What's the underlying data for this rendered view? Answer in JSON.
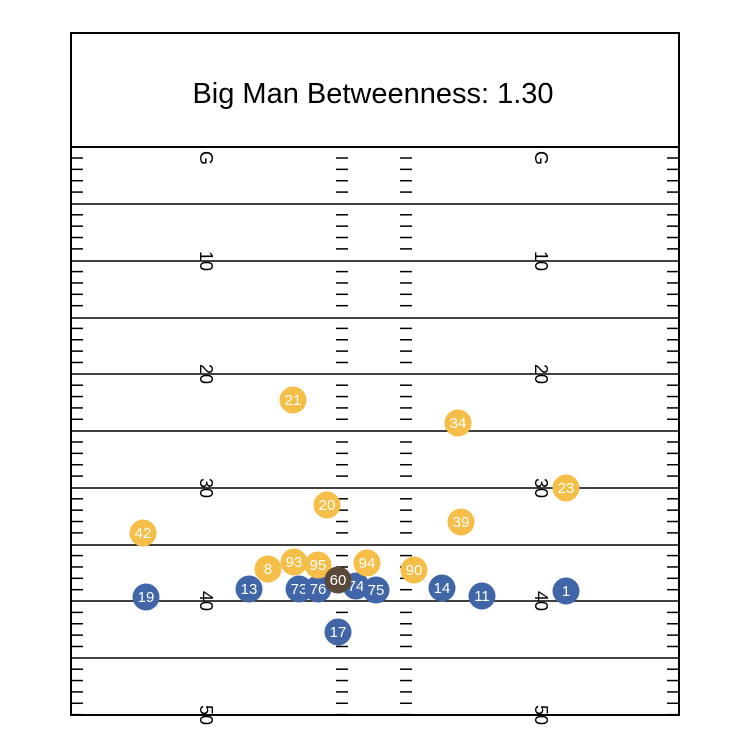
{
  "title": "Big Man Betweenness: 1.30",
  "chart_data": {
    "type": "scatter",
    "title": "Big Man Betweenness: 1.30",
    "field": {
      "yard_lines": [
        0,
        10,
        20,
        30,
        40,
        50
      ],
      "yard_number_labels": [
        "G",
        "10",
        "20",
        "30",
        "40",
        "50"
      ],
      "y_range": [
        -1,
        52
      ]
    },
    "colors": {
      "offense": "#4066a8",
      "defense": "#f5be48",
      "ball": "#5a4a3a",
      "line": "#000000"
    },
    "series": [
      {
        "team": "offense",
        "points": [
          {
            "label": "19",
            "x": 7.5,
            "y": 40.0
          },
          {
            "label": "13",
            "x": 19.5,
            "y": 39.6
          },
          {
            "label": "73",
            "x": 25.2,
            "y": 39.6
          },
          {
            "label": "76",
            "x": 27.0,
            "y": 39.6
          },
          {
            "label": "74",
            "x": 30.5,
            "y": 39.3
          },
          {
            "label": "75",
            "x": 32.5,
            "y": 39.6
          },
          {
            "label": "17",
            "x": 29.0,
            "y": 43.0
          },
          {
            "label": "14",
            "x": 41.0,
            "y": 39.5
          },
          {
            "label": "11",
            "x": 45.5,
            "y": 40.0
          },
          {
            "label": "1",
            "x": 53.0,
            "y": 39.6
          }
        ]
      },
      {
        "team": "defense",
        "points": [
          {
            "label": "21",
            "x": 24.6,
            "y": 22.4
          },
          {
            "label": "34",
            "x": 41.5,
            "y": 24.5
          },
          {
            "label": "23",
            "x": 53.0,
            "y": 30.3
          },
          {
            "label": "20",
            "x": 27.8,
            "y": 31.8
          },
          {
            "label": "39",
            "x": 41.8,
            "y": 33.3
          },
          {
            "label": "42",
            "x": 7.2,
            "y": 34.2
          },
          {
            "label": "8",
            "x": 21.7,
            "y": 37.2
          },
          {
            "label": "93",
            "x": 24.8,
            "y": 36.8
          },
          {
            "label": "95",
            "x": 27.0,
            "y": 36.9
          },
          {
            "label": "94",
            "x": 31.5,
            "y": 36.8
          },
          {
            "label": "90",
            "x": 37.0,
            "y": 37.3
          }
        ]
      },
      {
        "team": "ball",
        "points": [
          {
            "label": "60",
            "x": 29.0,
            "y": 38.8
          }
        ]
      }
    ]
  }
}
